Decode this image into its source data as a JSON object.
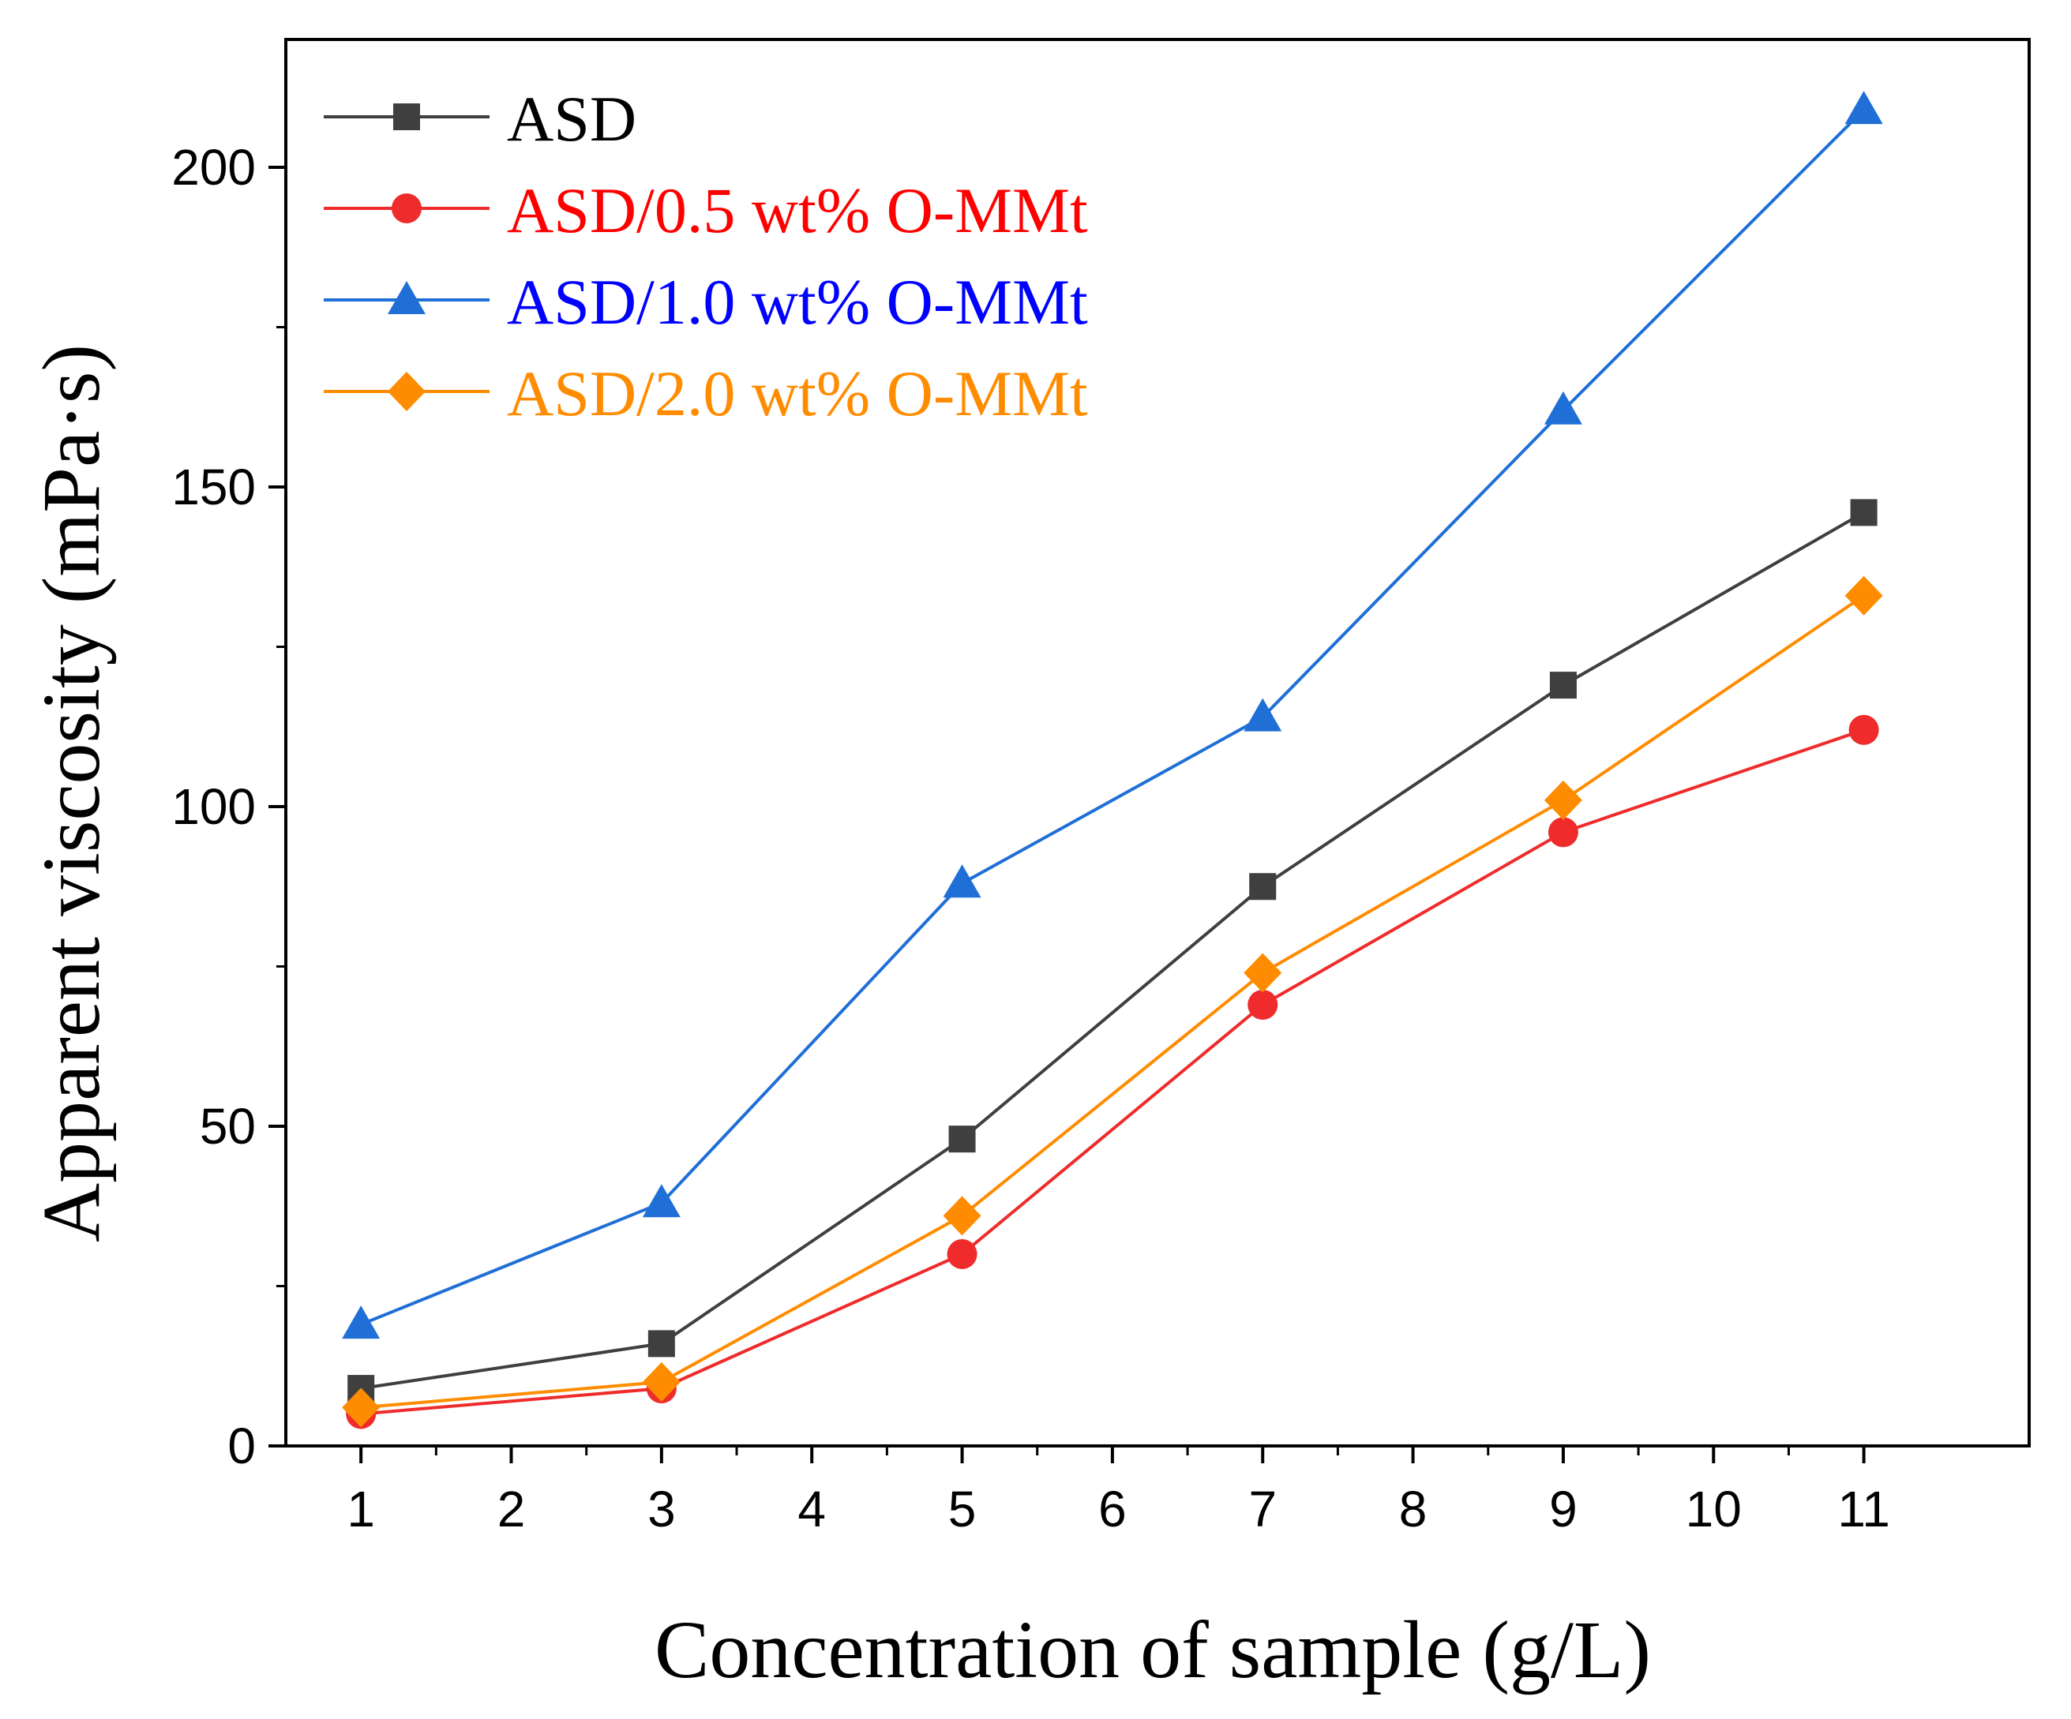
{
  "chart_data": {
    "type": "line",
    "title": "",
    "xlabel": "Concentration of sample (g/L)",
    "ylabel": "Apparent viscosity (mPa·s)",
    "xlim": [
      0.5,
      12.1
    ],
    "ylim": [
      0,
      220
    ],
    "xticks": [
      1,
      2,
      3,
      4,
      5,
      6,
      7,
      8,
      9,
      10,
      11
    ],
    "xtick_labels": [
      "1",
      "2",
      "3",
      "4",
      "5",
      "6",
      "7",
      "8",
      "9",
      "10",
      "11"
    ],
    "yticks": [
      0,
      50,
      100,
      150,
      200
    ],
    "ytick_labels": [
      "0",
      "50",
      "100",
      "150",
      "200"
    ],
    "grid": false,
    "legend_position": "top-left",
    "x": [
      1,
      3,
      5,
      7,
      9,
      11
    ],
    "series": [
      {
        "name": "ASD",
        "color": "#3f3f3f",
        "marker": "square",
        "values": [
          9,
          16,
          48,
          87.5,
          119,
          146
        ]
      },
      {
        "name": "ASD/0.5 wt% O-MMt",
        "color": "#ef2b2b",
        "marker": "circle",
        "values": [
          5,
          9,
          30,
          69,
          96,
          112
        ]
      },
      {
        "name": "ASD/1.0 wt% O-MMt",
        "color": "#1f6fd6",
        "marker": "triangle",
        "values": [
          19,
          38,
          88,
          114,
          162,
          209
        ]
      },
      {
        "name": "ASD/2.0 wt% O-MMt",
        "color": "#ff8c00",
        "marker": "diamond",
        "values": [
          6,
          10,
          36,
          74,
          101,
          133
        ]
      }
    ],
    "legend_text_colors": [
      "#000000",
      "#ff0000",
      "#0000ff",
      "#ff8c00"
    ]
  }
}
